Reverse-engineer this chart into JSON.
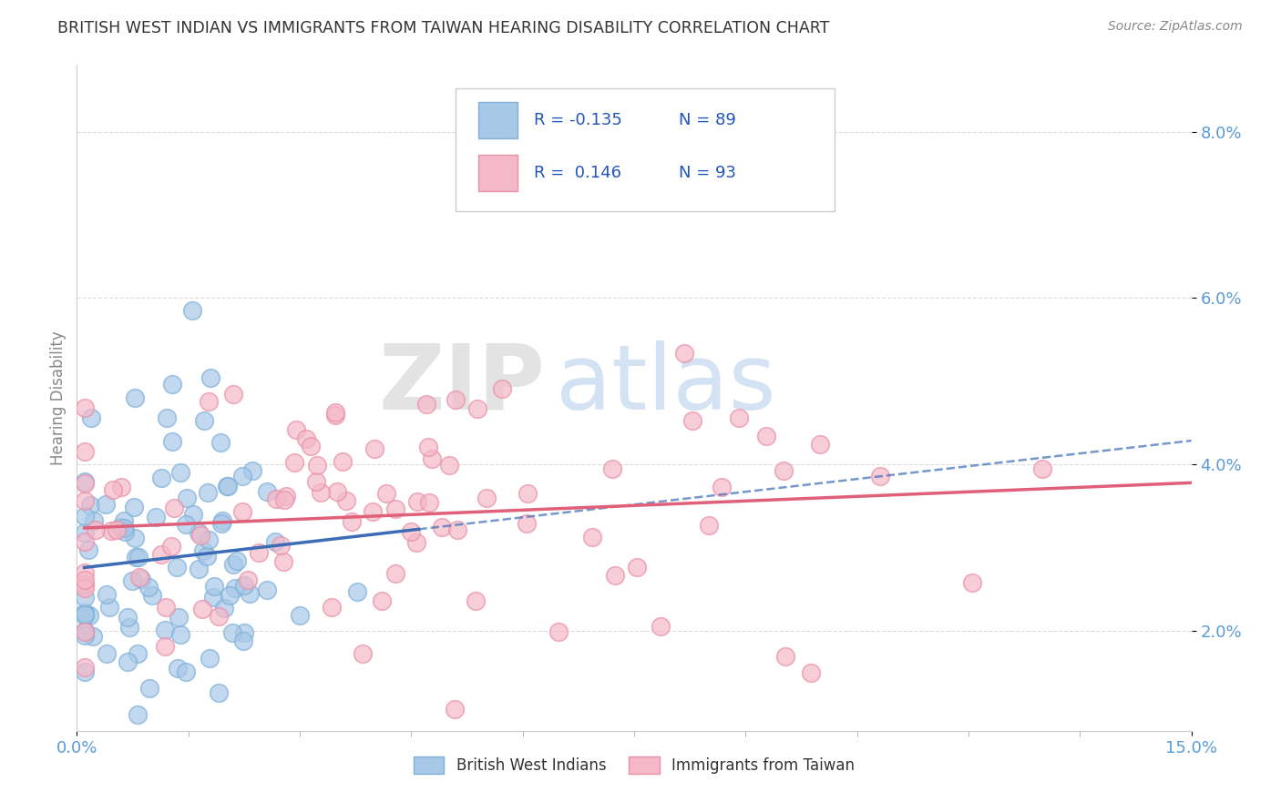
{
  "title": "BRITISH WEST INDIAN VS IMMIGRANTS FROM TAIWAN HEARING DISABILITY CORRELATION CHART",
  "source_text": "Source: ZipAtlas.com",
  "ylabel": "Hearing Disability",
  "xlim": [
    0.0,
    0.15
  ],
  "ylim": [
    0.008,
    0.088
  ],
  "yticks": [
    0.02,
    0.04,
    0.06,
    0.08
  ],
  "ytick_labels": [
    "2.0%",
    "4.0%",
    "6.0%",
    "8.0%"
  ],
  "xtick_labels": [
    "0.0%",
    "15.0%"
  ],
  "series1_name": "British West Indians",
  "series1_color": "#A8C8E8",
  "series1_edge_color": "#7EB0D8",
  "series1_R": -0.135,
  "series1_N": 89,
  "series1_line_color": "#3B6CB5",
  "series2_name": "Immigrants from Taiwan",
  "series2_color": "#F5B8C8",
  "series2_edge_color": "#E890A8",
  "series2_R": 0.146,
  "series2_N": 93,
  "series2_line_color": "#E0607A",
  "background_color": "#FFFFFF",
  "grid_color": "#CCCCCC",
  "title_color": "#333333",
  "axis_color": "#5B9BD5",
  "watermark_zip_color": "#C8C8C8",
  "watermark_atlas_color": "#A8C8E8",
  "legend_R_color": "#2255BB",
  "legend_N_color": "#2255BB"
}
